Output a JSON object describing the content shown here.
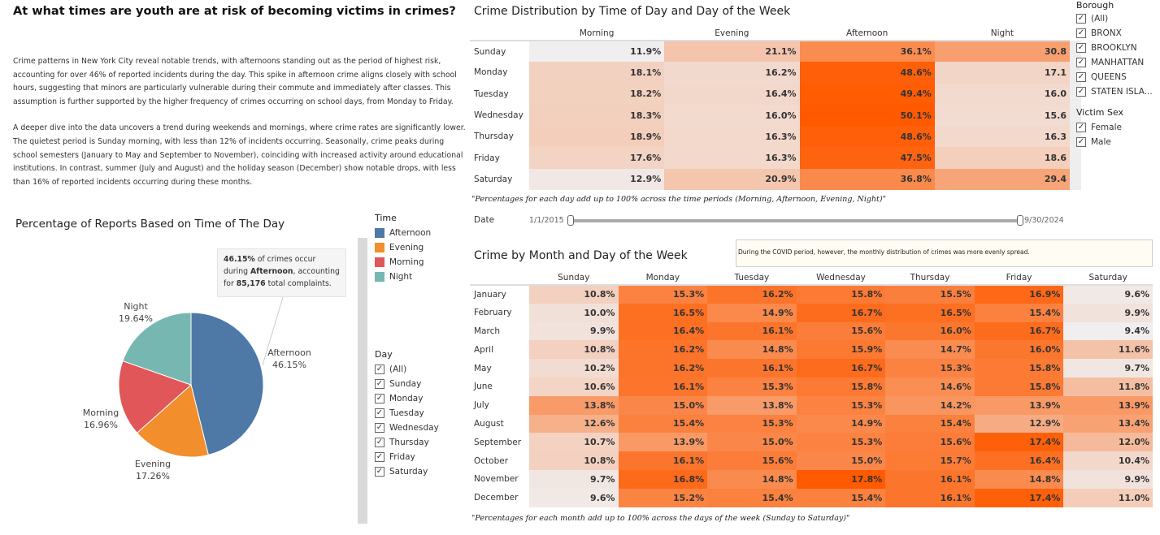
{
  "title": "At what times are youth are at risk of becoming victims in crimes?",
  "description": [
    "Crime patterns in New York City reveal notable trends, with afternoons standing out as the period of highest risk, accounting for over 46% of reported incidents during the day. This spike in afternoon crime aligns closely with school hours, suggesting that minors are particularly vulnerable during their commute and immediately after classes. This assumption is further supported by the higher frequency of crimes occurring on school days, from Monday to Friday.",
    "A deeper dive into the data uncovers a trend during weekends and mornings, where crime rates are significantly lower. The quietest period is Sunday morning, with less than 12% of incidents occurring. Seasonally, crime peaks during school semesters (January to May and September to November), coinciding with increased activity around educational institutions. In contrast, summer (July and August) and the holiday season (December) show notable drops, with less than 16% of reported incidents occurring during these months."
  ],
  "pie": {
    "title": "Percentage of Reports Based on Time of The Day",
    "slices": [
      {
        "name": "Afternoon",
        "value": 46.15,
        "label": "46.15%",
        "color": "#4e79a7"
      },
      {
        "name": "Evening",
        "value": 17.26,
        "label": "17.26%",
        "color": "#f28e2b"
      },
      {
        "name": "Morning",
        "value": 16.96,
        "label": "16.96%",
        "color": "#e15759"
      },
      {
        "name": "Night",
        "value": 19.64,
        "label": "19.64%",
        "color": "#76b7b2"
      }
    ],
    "tooltip": {
      "pct": "46.15%",
      "t1": " of crimes occur during ",
      "period": "Afternoon",
      "t2": ", accounting for ",
      "count": "85,176",
      "t3": " total complaints."
    }
  },
  "time_legend": {
    "title": "Time",
    "items": [
      {
        "label": "Afternoon",
        "color": "#4e79a7"
      },
      {
        "label": "Evening",
        "color": "#f28e2b"
      },
      {
        "label": "Morning",
        "color": "#e15759"
      },
      {
        "label": "Night",
        "color": "#76b7b2"
      }
    ]
  },
  "day_filter": {
    "title": "Day",
    "items": [
      "(All)",
      "Sunday",
      "Monday",
      "Tuesday",
      "Wednesday",
      "Thursday",
      "Friday",
      "Saturday"
    ]
  },
  "borough_filter": {
    "title": "Borough",
    "items": [
      "(All)",
      "BRONX",
      "BROOKLYN",
      "MANHATTAN",
      "QUEENS",
      "STATEN ISLA..."
    ]
  },
  "sex_filter": {
    "title": "Victim Sex",
    "items": [
      "Female",
      "Male"
    ]
  },
  "date_filter": {
    "label": "Date",
    "start": "1/1/2015",
    "end": "9/30/2024"
  },
  "chart_data": [
    {
      "type": "heatmap",
      "title": "Crime Distribution by Time of Day and Day of the Week",
      "columns": [
        "Morning",
        "Evening",
        "Afternoon",
        "Night"
      ],
      "rows": [
        "Sunday",
        "Monday",
        "Tuesday",
        "Wednesday",
        "Thursday",
        "Friday",
        "Saturday"
      ],
      "labels": [
        [
          "11.9%",
          "21.1%",
          "36.1%",
          "30.8"
        ],
        [
          "18.1%",
          "16.2%",
          "48.6%",
          "17.1"
        ],
        [
          "18.2%",
          "16.4%",
          "49.4%",
          "16.0"
        ],
        [
          "18.3%",
          "16.0%",
          "50.1%",
          "15.6"
        ],
        [
          "18.9%",
          "16.3%",
          "48.6%",
          "16.3"
        ],
        [
          "17.6%",
          "16.3%",
          "47.5%",
          "18.6"
        ],
        [
          "12.9%",
          "20.9%",
          "36.8%",
          "29.4"
        ]
      ],
      "values": [
        [
          11.9,
          21.1,
          36.1,
          30.8
        ],
        [
          18.1,
          16.2,
          48.6,
          17.1
        ],
        [
          18.2,
          16.4,
          49.4,
          16.0
        ],
        [
          18.3,
          16.0,
          50.1,
          15.6
        ],
        [
          18.9,
          16.3,
          48.6,
          16.3
        ],
        [
          17.6,
          16.3,
          47.5,
          18.6
        ],
        [
          12.9,
          20.9,
          36.8,
          29.4
        ]
      ],
      "color_range": [
        "#f0eeee",
        "#ff5a00"
      ],
      "note": "\"Percentages for each day add up to 100% across the time periods (Morning, Afternoon, Evening, Night)\""
    },
    {
      "type": "heatmap",
      "title": "Crime by Month and Day of the Week",
      "columns": [
        "Sunday",
        "Monday",
        "Tuesday",
        "Wednesday",
        "Thursday",
        "Friday",
        "Saturday"
      ],
      "rows": [
        "January",
        "February",
        "March",
        "April",
        "May",
        "June",
        "July",
        "August",
        "September",
        "October",
        "November",
        "December"
      ],
      "values": [
        [
          10.8,
          15.3,
          16.2,
          15.8,
          15.5,
          16.9,
          9.6
        ],
        [
          10.0,
          16.5,
          14.9,
          16.7,
          16.5,
          15.4,
          9.9
        ],
        [
          9.9,
          16.4,
          16.1,
          15.6,
          16.0,
          16.7,
          9.4
        ],
        [
          10.8,
          16.2,
          14.8,
          15.9,
          14.7,
          16.0,
          11.6
        ],
        [
          10.2,
          16.2,
          16.1,
          16.7,
          15.3,
          15.8,
          9.7
        ],
        [
          10.6,
          16.1,
          15.3,
          15.8,
          14.6,
          15.8,
          11.8
        ],
        [
          13.8,
          15.0,
          13.8,
          15.3,
          14.2,
          13.9,
          13.9
        ],
        [
          12.6,
          15.4,
          15.3,
          14.9,
          15.4,
          12.9,
          13.4
        ],
        [
          10.7,
          13.9,
          15.0,
          15.3,
          15.6,
          17.4,
          12.0
        ],
        [
          10.8,
          16.1,
          15.6,
          15.0,
          15.7,
          16.4,
          10.4
        ],
        [
          9.7,
          16.8,
          14.8,
          17.8,
          16.1,
          14.8,
          9.9
        ],
        [
          9.6,
          15.2,
          15.4,
          15.4,
          16.1,
          17.4,
          11.0
        ]
      ],
      "color_range": [
        "#f0eeee",
        "#ff5a00"
      ],
      "annotation": "During the COVID period, however, the monthly distribution of crimes was more evenly spread.",
      "note": "\"Percentages for each month add up to 100% across the days of the week (Sunday to Saturday)\""
    }
  ]
}
